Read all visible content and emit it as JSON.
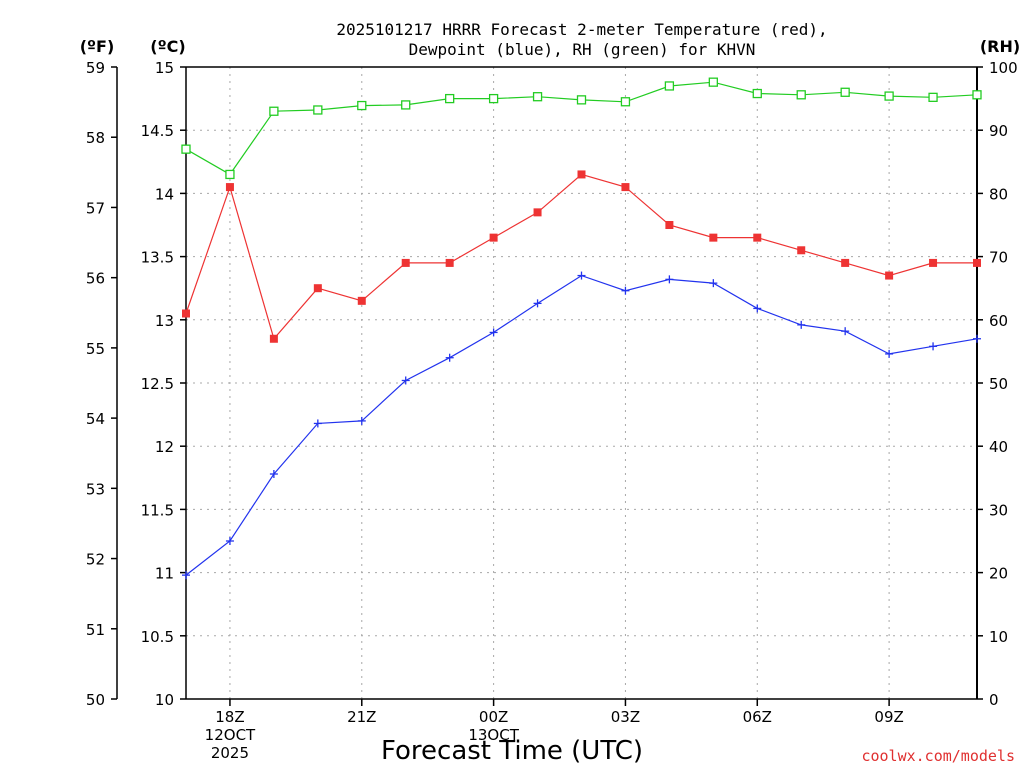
{
  "chart_data": {
    "type": "line",
    "title": [
      "2025101217 HRRR Forecast 2-meter Temperature (red),",
      "Dewpoint (blue), RH (green) for KHVN"
    ],
    "xlabel": "Forecast Time (UTC)",
    "credit": "coolwx.com/models",
    "units": {
      "left_outer": "(ºF)",
      "left_inner": "(ºC)",
      "right": "(RH)"
    },
    "x_hours": [
      0,
      1,
      2,
      3,
      4,
      5,
      6,
      7,
      8,
      9,
      10,
      11,
      12,
      13,
      14,
      15,
      16,
      17,
      18
    ],
    "x_ticks": [
      {
        "hour": 1,
        "lines": [
          "18Z",
          "12OCT",
          "2025"
        ]
      },
      {
        "hour": 4,
        "lines": [
          "21Z"
        ]
      },
      {
        "hour": 7,
        "lines": [
          "00Z",
          "13OCT"
        ]
      },
      {
        "hour": 10,
        "lines": [
          "03Z"
        ]
      },
      {
        "hour": 13,
        "lines": [
          "06Z"
        ]
      },
      {
        "hour": 16,
        "lines": [
          "09Z"
        ]
      }
    ],
    "axes": {
      "celsius": {
        "range": [
          10,
          15
        ],
        "ticks": [
          "10",
          "10.5",
          "11",
          "11.5",
          "12",
          "12.5",
          "13",
          "13.5",
          "14",
          "14.5",
          "15"
        ]
      },
      "fahrenheit": {
        "range": [
          50,
          59
        ],
        "ticks": [
          "50",
          "51",
          "52",
          "53",
          "54",
          "55",
          "56",
          "57",
          "58",
          "59"
        ]
      },
      "rh": {
        "range": [
          0,
          100
        ],
        "ticks": [
          "0",
          "10",
          "20",
          "30",
          "40",
          "50",
          "60",
          "70",
          "80",
          "90",
          "100"
        ]
      }
    },
    "series": [
      {
        "name": "Temperature",
        "axis": "celsius",
        "color": "#ee3333",
        "marker": "filled-square",
        "values": [
          13.05,
          14.05,
          12.85,
          13.25,
          13.15,
          13.45,
          13.45,
          13.65,
          13.85,
          14.15,
          14.05,
          13.75,
          13.65,
          13.65,
          13.55,
          13.45,
          13.35,
          13.45,
          13.45
        ]
      },
      {
        "name": "Dewpoint",
        "axis": "celsius",
        "color": "#2233ee",
        "marker": "plus",
        "values": [
          10.98,
          11.25,
          11.78,
          12.18,
          12.2,
          12.52,
          12.7,
          12.9,
          13.13,
          13.35,
          13.23,
          13.32,
          13.29,
          13.09,
          12.96,
          12.91,
          12.73,
          12.79,
          12.85
        ]
      },
      {
        "name": "RH",
        "axis": "rh",
        "color": "#22cc22",
        "marker": "open-square",
        "values": [
          87,
          83,
          93,
          93.2,
          93.9,
          94,
          95,
          95,
          95.3,
          94.8,
          94.5,
          97,
          97.6,
          95.8,
          95.6,
          96,
          95.4,
          95.2,
          95.6
        ]
      }
    ]
  }
}
